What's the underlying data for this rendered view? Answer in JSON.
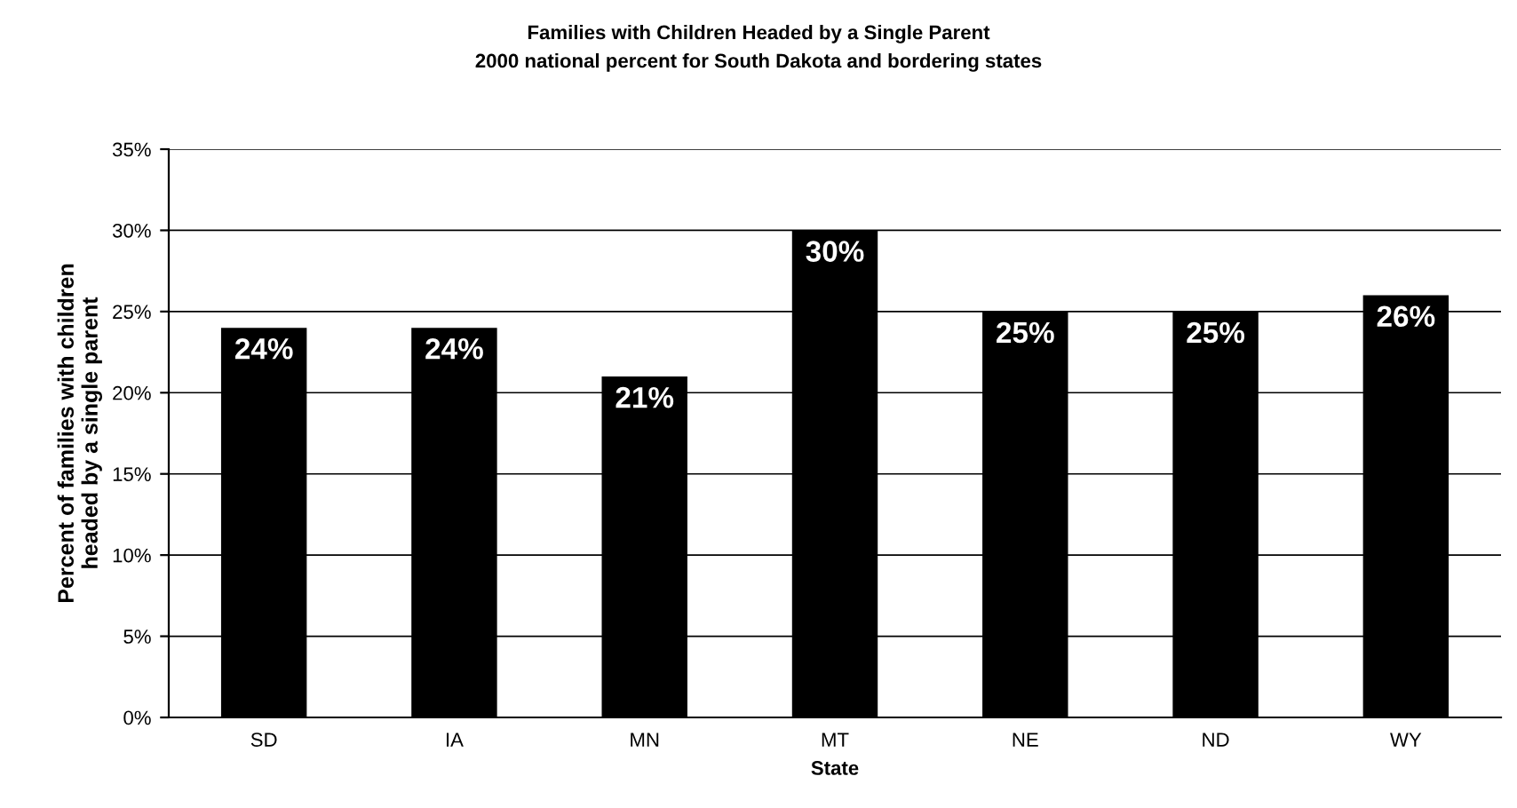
{
  "chart_data": {
    "type": "bar",
    "title": "Families with Children Headed by a Single Parent",
    "subtitle": "2000 national percent for South Dakota and bordering states",
    "xlabel": "State",
    "ylabel": "Percent of families with children\nheaded by a single parent",
    "categories": [
      "SD",
      "IA",
      "MN",
      "MT",
      "NE",
      "ND",
      "WY"
    ],
    "values": [
      24,
      24,
      21,
      30,
      25,
      25,
      26
    ],
    "value_labels": [
      "24%",
      "24%",
      "21%",
      "30%",
      "25%",
      "25%",
      "26%"
    ],
    "color": "#000000",
    "ylim": [
      0,
      35
    ],
    "yticks": [
      {
        "value": 0,
        "label": "0%"
      },
      {
        "value": 5,
        "label": "5%"
      },
      {
        "value": 10,
        "label": "10%"
      },
      {
        "value": 15,
        "label": "15%"
      },
      {
        "value": 20,
        "label": "20%"
      },
      {
        "value": 25,
        "label": "25%"
      },
      {
        "value": 30,
        "label": "30%"
      },
      {
        "value": 35,
        "label": "35%"
      }
    ],
    "grid": "y"
  }
}
